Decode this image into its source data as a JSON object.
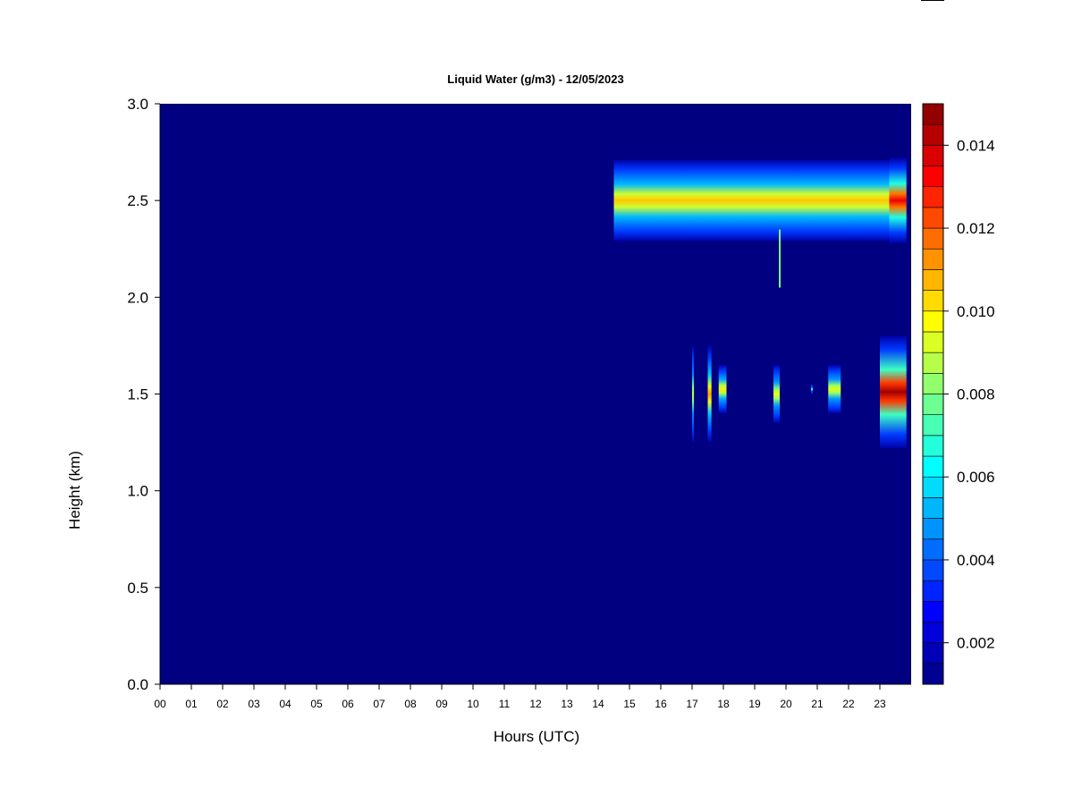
{
  "chart_data": {
    "type": "heatmap",
    "title": "Liquid Water (g/m3) - 12/05/2023",
    "xlabel": "Hours (UTC)",
    "ylabel": "Height (km)",
    "xlim": [
      0,
      24
    ],
    "ylim": [
      0.0,
      3.0
    ],
    "x_ticks": [
      "00",
      "01",
      "02",
      "03",
      "04",
      "05",
      "06",
      "07",
      "08",
      "09",
      "10",
      "11",
      "12",
      "13",
      "14",
      "15",
      "16",
      "17",
      "18",
      "19",
      "20",
      "21",
      "22",
      "23"
    ],
    "y_ticks": [
      "0.0",
      "0.5",
      "1.0",
      "1.5",
      "2.0",
      "2.5",
      "3.0"
    ],
    "y_tick_values": [
      0.0,
      0.5,
      1.0,
      1.5,
      2.0,
      2.5,
      3.0
    ],
    "colorbar": {
      "range": [
        0.001,
        0.015
      ],
      "levels": 28,
      "tick_values": [
        0.002,
        0.004,
        0.006,
        0.008,
        0.01,
        0.012,
        0.014
      ],
      "tick_labels": [
        "0.002",
        "0.004",
        "0.006",
        "0.008",
        "0.010",
        "0.012",
        "0.014"
      ]
    },
    "background_value": 0.001,
    "features": [
      {
        "kind": "layer",
        "x_start": 14.5,
        "x_end": 23.3,
        "center_km": 2.5,
        "half_thickness_km": 0.21,
        "peak": 0.0105
      },
      {
        "kind": "layer",
        "x_start": 23.3,
        "x_end": 23.85,
        "center_km": 2.5,
        "half_thickness_km": 0.22,
        "peak": 0.0135
      },
      {
        "kind": "streak",
        "x": 19.8,
        "y_from": 2.05,
        "y_to": 2.35,
        "value": 0.008
      },
      {
        "kind": "column",
        "x_start": 17.0,
        "x_end": 17.06,
        "y_from": 1.25,
        "y_to": 1.75,
        "peak": 0.009
      },
      {
        "kind": "column",
        "x_start": 17.5,
        "x_end": 17.62,
        "y_from": 1.25,
        "y_to": 1.75,
        "peak": 0.011
      },
      {
        "kind": "column",
        "x_start": 17.85,
        "x_end": 18.1,
        "y_from": 1.4,
        "y_to": 1.65,
        "peak": 0.01
      },
      {
        "kind": "column",
        "x_start": 19.6,
        "x_end": 19.8,
        "y_from": 1.35,
        "y_to": 1.65,
        "peak": 0.0095
      },
      {
        "kind": "column",
        "x_start": 20.8,
        "x_end": 20.85,
        "y_from": 1.5,
        "y_to": 1.55,
        "peak": 0.007
      },
      {
        "kind": "column",
        "x_start": 21.35,
        "x_end": 21.75,
        "y_from": 1.4,
        "y_to": 1.65,
        "peak": 0.0095
      },
      {
        "kind": "column",
        "x_start": 23.0,
        "x_end": 23.85,
        "y_from": 1.22,
        "y_to": 1.8,
        "peak": 0.0145
      }
    ]
  }
}
